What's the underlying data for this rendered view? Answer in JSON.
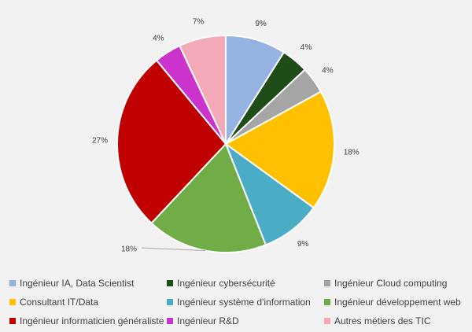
{
  "chart_data": {
    "type": "pie",
    "categories": [
      "Ingénieur IA, Data Scientist",
      "Ingénieur cybersécurité",
      "Ingénieur Cloud computing",
      "Consultant IT/Data",
      "Ingénieur système d'information",
      "Ingénieur développement web",
      "Ingénieur informaticien généraliste",
      "Ingénieur R&D",
      "Autres métiers des TIC"
    ],
    "values": [
      9,
      4,
      4,
      18,
      9,
      18,
      27,
      4,
      7
    ],
    "data_labels": [
      "9%",
      "4%",
      "4%",
      "18%",
      "9%",
      "18%",
      "27%",
      "4%",
      "7%"
    ],
    "colors": [
      "#95b3e0",
      "#1e4d17",
      "#a5a5a5",
      "#ffc000",
      "#4bacc6",
      "#70ad47",
      "#c00000",
      "#cc33cc",
      "#f4a9b8"
    ],
    "legend_position": "bottom",
    "title": ""
  }
}
